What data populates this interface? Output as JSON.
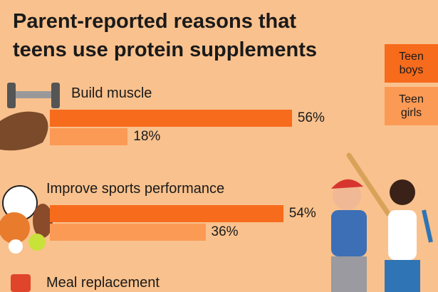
{
  "chart_data": {
    "type": "bar",
    "orientation": "horizontal",
    "title": "Parent-reported reasons that teens use protein supplements",
    "categories": [
      "Build muscle",
      "Improve sports performance",
      "Meal replacement"
    ],
    "series": [
      {
        "name": "Teen boys",
        "color": "#f76b1c",
        "values": [
          56,
          54,
          null
        ],
        "value_labels": [
          "56%",
          "54%",
          null
        ]
      },
      {
        "name": "Teen girls",
        "color": "#fb9a55",
        "values": [
          18,
          36,
          null
        ],
        "value_labels": [
          "18%",
          "36%",
          null
        ]
      }
    ]
  }
}
